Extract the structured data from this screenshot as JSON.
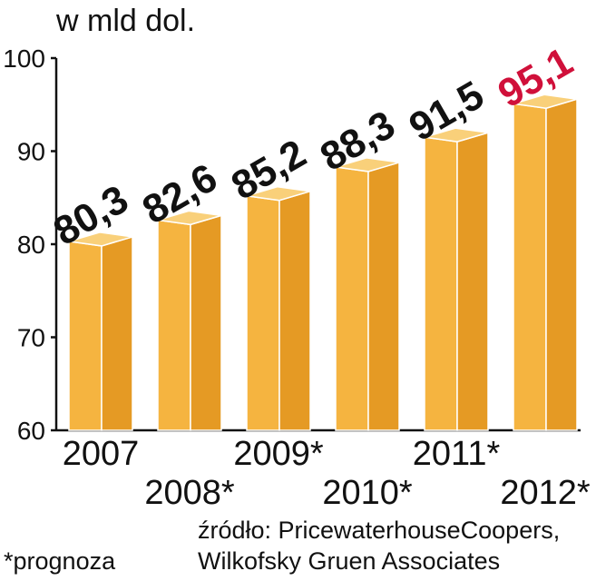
{
  "chart_data": {
    "type": "bar",
    "title": "w mld dol.",
    "categories": [
      "2007",
      "2008*",
      "2009*",
      "2010*",
      "2011*",
      "2012*"
    ],
    "values": [
      80.3,
      82.6,
      85.2,
      88.3,
      91.5,
      95.1
    ],
    "value_labels": [
      "80,3",
      "82,6",
      "85,2",
      "88,3",
      "91,5",
      "95,1"
    ],
    "ylim": [
      60,
      100
    ],
    "yticks": [
      "60",
      "70",
      "80",
      "90",
      "100"
    ],
    "grid": false,
    "bar_style": "3d",
    "colors": {
      "bar_front": "#F5B440",
      "bar_side": "#E59A24",
      "bar_top": "#F9D07A",
      "value_label": "#111111",
      "highlight_label": "#D0103A",
      "axis": "#111111"
    },
    "highlight_index": 5
  },
  "footer": {
    "note": "*prognoza",
    "source_line1": "źródło: PricewaterhouseCoopers,",
    "source_line2": "Wilkofsky Gruen Associates"
  }
}
